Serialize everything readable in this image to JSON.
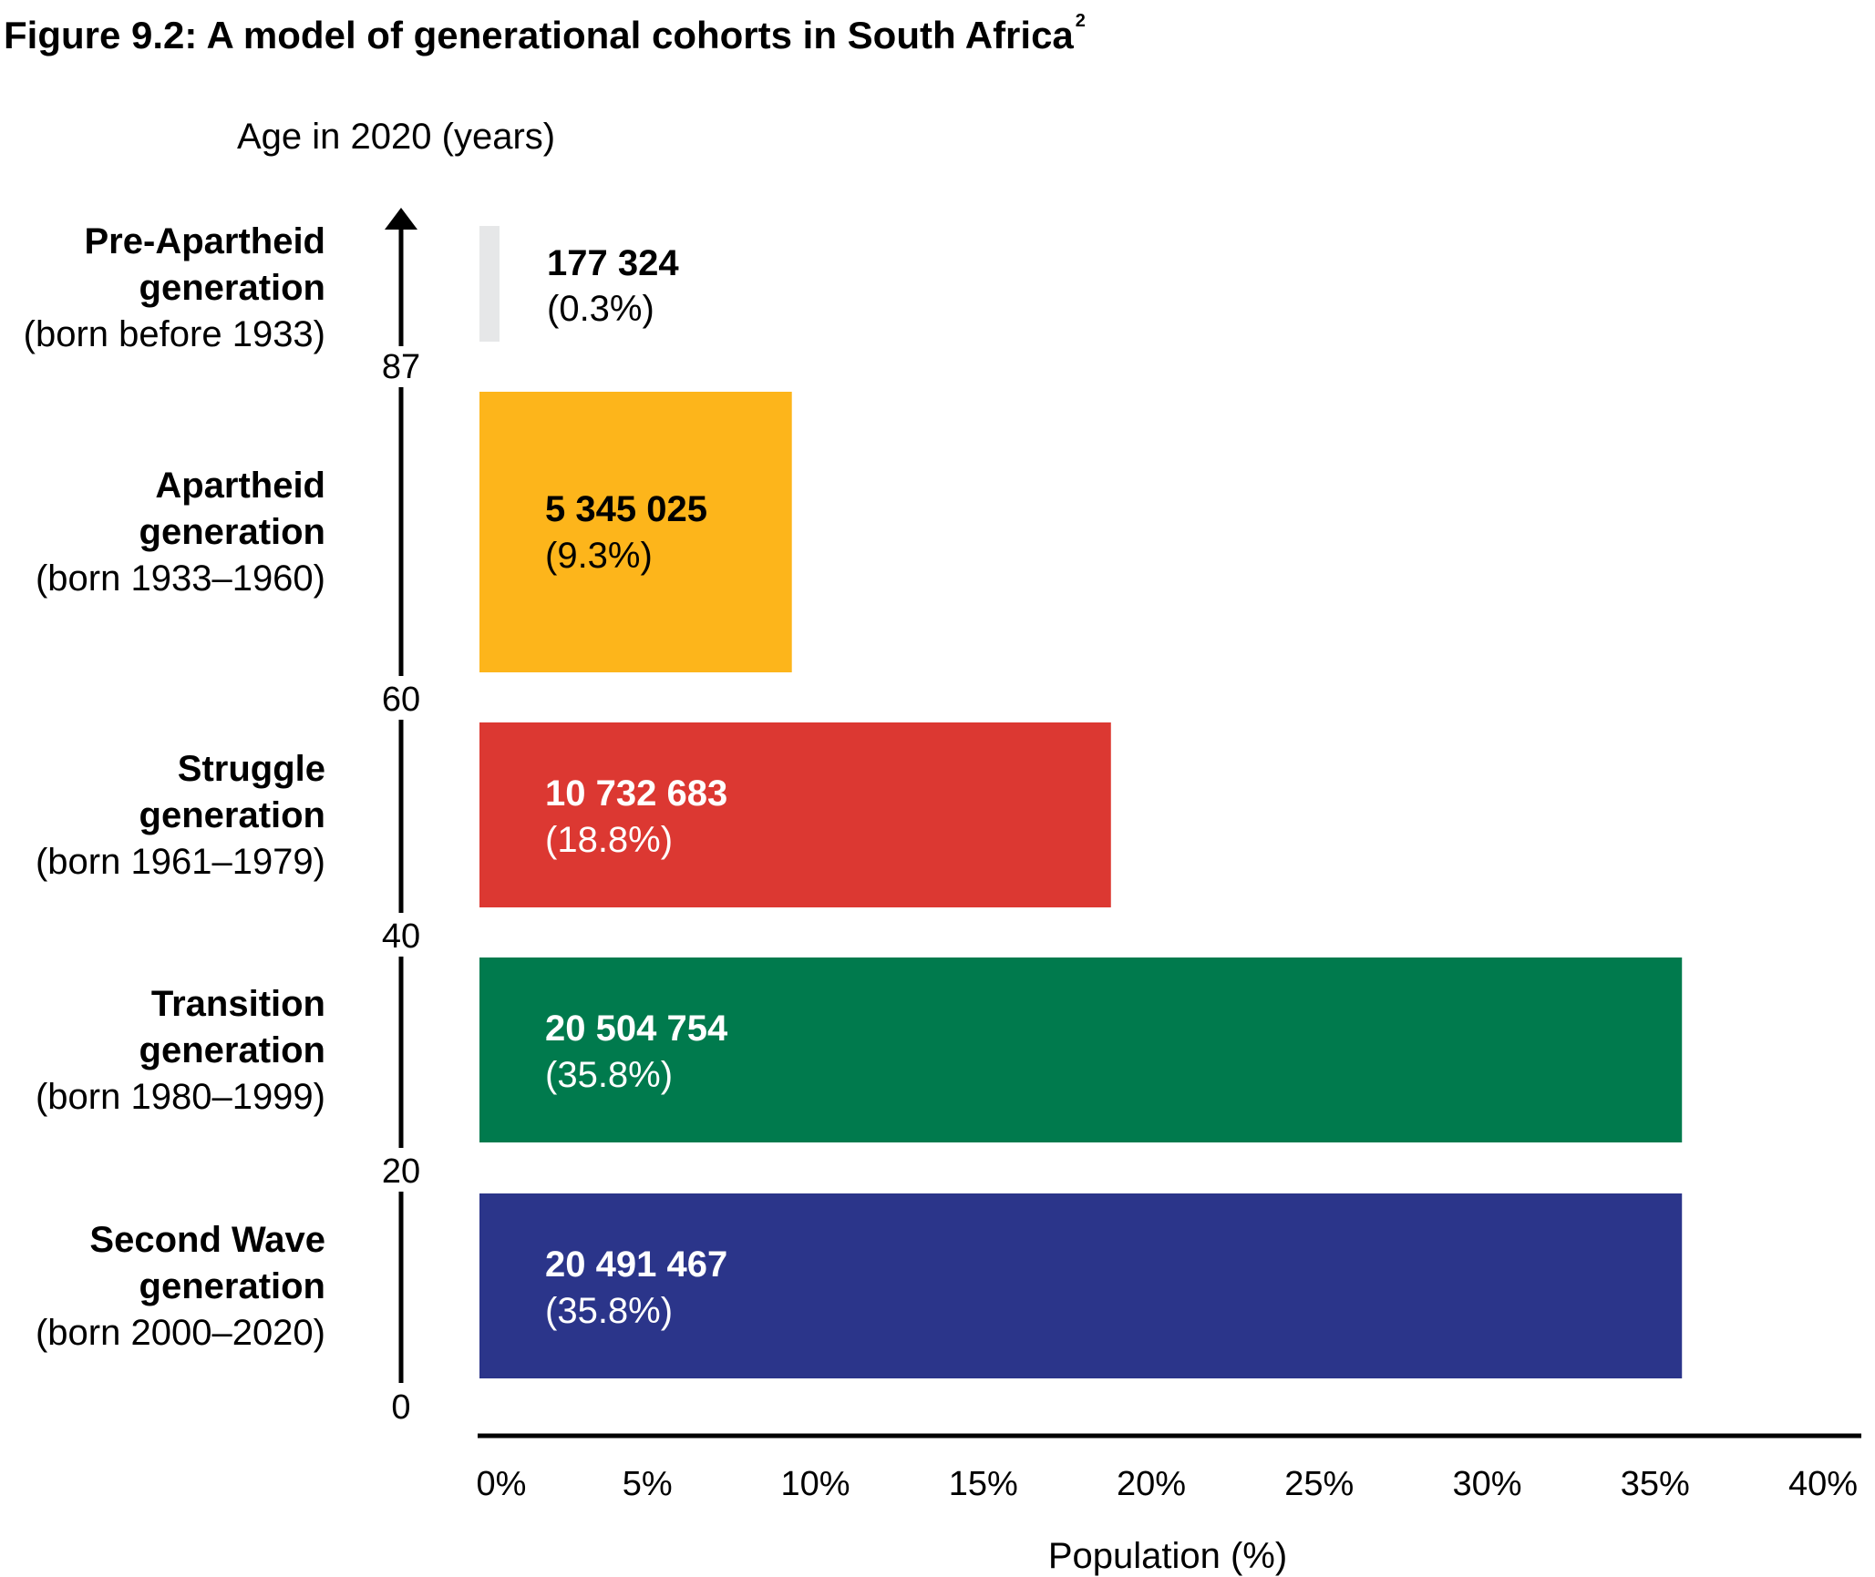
{
  "figure": {
    "title": "Figure 9.2: A model of generational cohorts in South Africa",
    "title_sup": "2"
  },
  "chart_data": {
    "type": "bar",
    "orientation": "horizontal",
    "title": "Figure 9.2: A model of generational cohorts in South Africa",
    "ylabel": "Age in 2020 (years)",
    "xlabel": "Population (%)",
    "xlim": [
      0,
      40
    ],
    "x_ticks": [
      "0%",
      "5%",
      "10%",
      "15%",
      "20%",
      "25%",
      "30%",
      "35%",
      "40%"
    ],
    "age_ticks": [
      "87",
      "60",
      "40",
      "20",
      "0"
    ],
    "categories": [
      {
        "name": "Pre-Apartheid",
        "line2": "generation",
        "born": "(born before 1933)"
      },
      {
        "name": "Apartheid",
        "line2": "generation",
        "born": "(born 1933–1960)"
      },
      {
        "name": "Struggle",
        "line2": "generation",
        "born": "(born 1961–1979)"
      },
      {
        "name": "Transition",
        "line2": "generation",
        "born": "(born 1980–1999)"
      },
      {
        "name": "Second Wave",
        "line2": "generation",
        "born": "(born 2000–2020)"
      }
    ],
    "values": [
      0.3,
      9.3,
      18.8,
      35.8,
      35.8
    ],
    "bar_value_labels": [
      "177 324",
      "5 345 025",
      "10 732 683",
      "20 504 754",
      "20 491 467"
    ],
    "bar_pct_labels": [
      "(0.3%)",
      "(9.3%)",
      "(18.8%)",
      "(35.8%)",
      "(35.8%)"
    ],
    "colors": [
      "#e6e7e8",
      "#fdb51b",
      "#dc3832",
      "#007a4d",
      "#2b358a"
    ],
    "label_colors": [
      "#000000",
      "#000000",
      "#ffffff",
      "#ffffff",
      "#ffffff"
    ],
    "grid": false,
    "legend": "none"
  }
}
